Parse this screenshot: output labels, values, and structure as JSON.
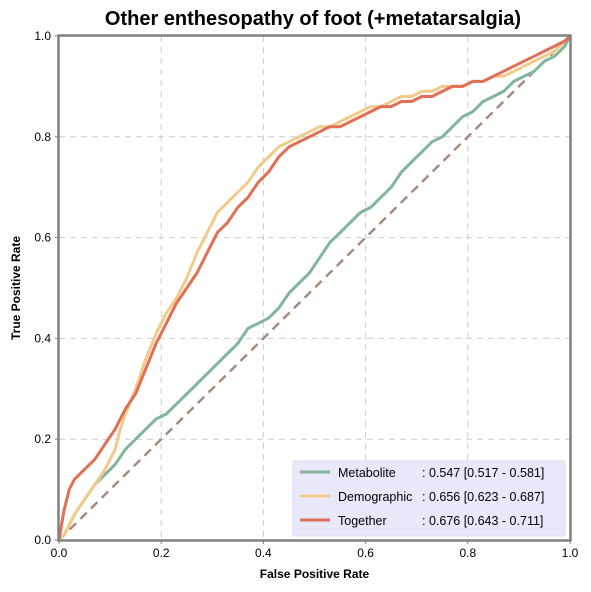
{
  "chart_data": {
    "type": "line",
    "title": "Other enthesopathy of foot (+metatarsalgia)",
    "xlabel": "False Positive Rate",
    "ylabel": "True Positive Rate",
    "xlim": [
      0,
      1
    ],
    "ylim": [
      0,
      1
    ],
    "xticks": [
      "0.0",
      "0.2",
      "0.4",
      "0.6",
      "0.8",
      "1.0"
    ],
    "yticks": [
      "0.0",
      "0.2",
      "0.4",
      "0.6",
      "0.8",
      "1.0"
    ],
    "grid": true,
    "legend_position": "bottom-right",
    "series": [
      {
        "name": "Metabolite",
        "label": ": 0.547 [0.517 - 0.581]",
        "color": "#82b59a",
        "x": [
          0,
          0.01,
          0.02,
          0.03,
          0.05,
          0.07,
          0.09,
          0.11,
          0.13,
          0.15,
          0.17,
          0.19,
          0.21,
          0.23,
          0.25,
          0.27,
          0.29,
          0.31,
          0.33,
          0.35,
          0.37,
          0.39,
          0.41,
          0.43,
          0.45,
          0.47,
          0.49,
          0.51,
          0.53,
          0.55,
          0.57,
          0.59,
          0.61,
          0.63,
          0.65,
          0.67,
          0.69,
          0.71,
          0.73,
          0.75,
          0.77,
          0.79,
          0.81,
          0.83,
          0.85,
          0.87,
          0.89,
          0.91,
          0.93,
          0.95,
          0.97,
          0.99,
          1.0
        ],
        "y": [
          0,
          0.01,
          0.03,
          0.05,
          0.08,
          0.11,
          0.13,
          0.15,
          0.18,
          0.2,
          0.22,
          0.24,
          0.25,
          0.27,
          0.29,
          0.31,
          0.33,
          0.35,
          0.37,
          0.39,
          0.42,
          0.43,
          0.44,
          0.46,
          0.49,
          0.51,
          0.53,
          0.56,
          0.59,
          0.61,
          0.63,
          0.65,
          0.66,
          0.68,
          0.7,
          0.73,
          0.75,
          0.77,
          0.79,
          0.8,
          0.82,
          0.84,
          0.85,
          0.87,
          0.88,
          0.89,
          0.91,
          0.92,
          0.93,
          0.95,
          0.96,
          0.98,
          1.0
        ]
      },
      {
        "name": "Demographic",
        "label": ": 0.656 [0.623 - 0.687]",
        "color": "#f2cb8a",
        "x": [
          0,
          0.01,
          0.02,
          0.03,
          0.05,
          0.07,
          0.09,
          0.11,
          0.12,
          0.13,
          0.15,
          0.17,
          0.19,
          0.21,
          0.23,
          0.25,
          0.27,
          0.29,
          0.31,
          0.33,
          0.35,
          0.37,
          0.39,
          0.41,
          0.43,
          0.45,
          0.47,
          0.49,
          0.51,
          0.53,
          0.55,
          0.57,
          0.59,
          0.61,
          0.63,
          0.65,
          0.67,
          0.69,
          0.71,
          0.73,
          0.75,
          0.77,
          0.79,
          0.81,
          0.83,
          0.85,
          0.87,
          0.89,
          0.91,
          0.93,
          0.95,
          0.97,
          0.99,
          1.0
        ],
        "y": [
          0,
          0.01,
          0.03,
          0.05,
          0.08,
          0.11,
          0.14,
          0.18,
          0.22,
          0.25,
          0.3,
          0.36,
          0.41,
          0.45,
          0.48,
          0.52,
          0.57,
          0.61,
          0.65,
          0.67,
          0.69,
          0.71,
          0.74,
          0.76,
          0.78,
          0.79,
          0.8,
          0.81,
          0.82,
          0.82,
          0.83,
          0.84,
          0.85,
          0.86,
          0.86,
          0.87,
          0.88,
          0.88,
          0.89,
          0.89,
          0.9,
          0.9,
          0.9,
          0.91,
          0.91,
          0.92,
          0.92,
          0.93,
          0.94,
          0.95,
          0.96,
          0.97,
          0.99,
          1.0
        ]
      },
      {
        "name": "Together",
        "label": ": 0.676 [0.643 - 0.711]",
        "color": "#e06f55",
        "x": [
          0,
          0.005,
          0.01,
          0.015,
          0.02,
          0.03,
          0.05,
          0.07,
          0.09,
          0.11,
          0.13,
          0.15,
          0.17,
          0.19,
          0.21,
          0.23,
          0.25,
          0.27,
          0.29,
          0.31,
          0.33,
          0.35,
          0.37,
          0.39,
          0.41,
          0.43,
          0.45,
          0.47,
          0.49,
          0.51,
          0.53,
          0.55,
          0.57,
          0.59,
          0.61,
          0.63,
          0.65,
          0.67,
          0.69,
          0.71,
          0.73,
          0.75,
          0.77,
          0.79,
          0.81,
          0.83,
          0.85,
          0.87,
          0.89,
          0.91,
          0.93,
          0.95,
          0.97,
          0.99,
          1.0
        ],
        "y": [
          0,
          0.03,
          0.06,
          0.08,
          0.1,
          0.12,
          0.14,
          0.16,
          0.19,
          0.22,
          0.26,
          0.29,
          0.34,
          0.39,
          0.43,
          0.47,
          0.5,
          0.53,
          0.57,
          0.61,
          0.63,
          0.66,
          0.68,
          0.71,
          0.73,
          0.76,
          0.78,
          0.79,
          0.8,
          0.81,
          0.82,
          0.82,
          0.83,
          0.84,
          0.85,
          0.86,
          0.86,
          0.87,
          0.87,
          0.88,
          0.88,
          0.89,
          0.9,
          0.9,
          0.91,
          0.91,
          0.92,
          0.93,
          0.94,
          0.95,
          0.96,
          0.97,
          0.98,
          0.99,
          1.0
        ]
      }
    ],
    "reference_line": {
      "x": [
        0,
        1
      ],
      "y": [
        0,
        1
      ],
      "color": "#a78b7d",
      "style": "dashed"
    }
  }
}
